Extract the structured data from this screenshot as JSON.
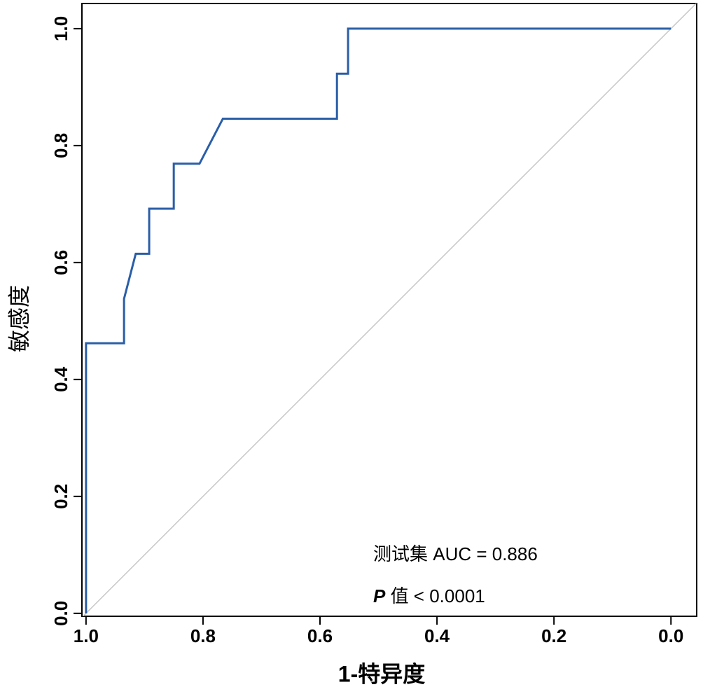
{
  "chart_data": {
    "type": "line",
    "xlabel": "1-特异度",
    "ylabel": "敏感度",
    "xlim": [
      1.007,
      -0.044
    ],
    "ylim": [
      -0.005,
      1.043
    ],
    "xticks": [
      {
        "value": 1,
        "label": "1.0"
      },
      0.8,
      0.6,
      0.4,
      0.2,
      {
        "value": 0,
        "label": "0.0"
      }
    ],
    "yticks": [
      {
        "value": 0,
        "label": "0.0"
      },
      0.2,
      0.4,
      0.6,
      0.8,
      {
        "value": 1,
        "label": "1.0"
      }
    ],
    "reference_line": true,
    "reference_color": "#c8c8c8",
    "series": [
      {
        "color": "#2a5ea8",
        "x": [
          1.0,
          1.0,
          0.935,
          0.935,
          0.915,
          0.892,
          0.892,
          0.85,
          0.85,
          0.806,
          0.766,
          0.571,
          0.571,
          0.552,
          0.552,
          0.0
        ],
        "values": [
          0.0,
          0.462,
          0.462,
          0.538,
          0.615,
          0.615,
          0.692,
          0.692,
          0.769,
          0.769,
          0.846,
          0.846,
          0.923,
          0.923,
          1.0,
          1.0
        ]
      }
    ],
    "annotations": [
      "测试集 AUC = 0.886"
    ],
    "p_annotation": {
      "symbol": "P",
      "text": "值 < 0.0001"
    }
  }
}
